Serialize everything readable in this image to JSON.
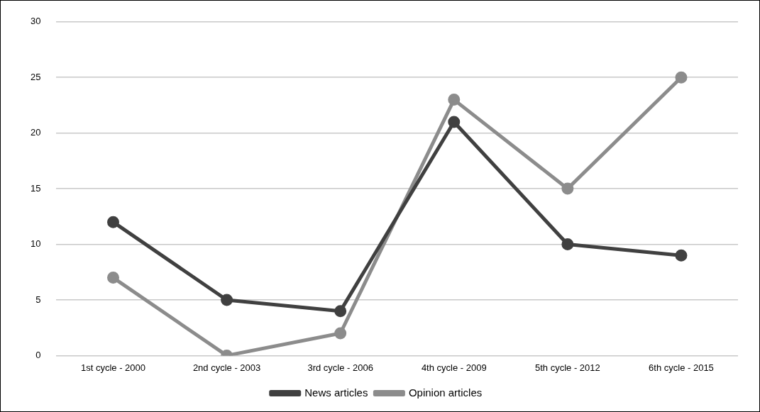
{
  "chart_data": {
    "type": "line",
    "categories": [
      "1st cycle - 2000",
      "2nd cycle - 2003",
      "3rd cycle - 2006",
      "4th cycle - 2009",
      "5th cycle - 2012",
      "6th cycle - 2015"
    ],
    "series": [
      {
        "name": "News articles",
        "color": "#404040",
        "values": [
          12,
          5,
          4,
          21,
          10,
          9
        ]
      },
      {
        "name": "Opinion articles",
        "color": "#8c8c8c",
        "values": [
          7,
          0,
          2,
          23,
          15,
          25
        ]
      }
    ],
    "ylim": [
      0,
      30
    ],
    "yticks": [
      0,
      5,
      10,
      15,
      20,
      25,
      30
    ],
    "grid": "y",
    "legend": "bottom",
    "marker": "circle",
    "line_style": "solid"
  }
}
